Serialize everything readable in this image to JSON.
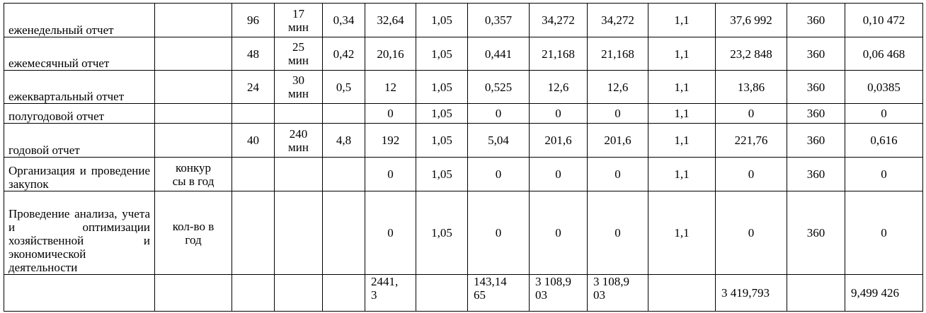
{
  "table": {
    "rows": [
      [
        "еженедельный отчет",
        null,
        "96",
        "17\nмин",
        "0,34",
        "32,64",
        "1,05",
        "0,357",
        "34,272",
        "34,272",
        "1,1",
        "37,6 992",
        "360",
        "0,10 472"
      ],
      [
        "ежемесячный отчет",
        null,
        "48",
        "25\nмин",
        "0,42",
        "20,16",
        "1,05",
        "0,441",
        "21,168",
        "21,168",
        "1,1",
        "23,2 848",
        "360",
        "0,06 468"
      ],
      [
        "ежеквартальный отчет",
        null,
        "24",
        "30\nмин",
        "0,5",
        "12",
        "1,05",
        "0,525",
        "12,6",
        "12,6",
        "1,1",
        "13,86",
        "360",
        "0,0385"
      ],
      [
        "полугодовой отчет",
        null,
        null,
        null,
        null,
        "0",
        "1,05",
        "0",
        "0",
        "0",
        "1,1",
        "0",
        "360",
        "0"
      ],
      [
        "годовой отчет",
        null,
        "40",
        "240\nмин",
        "4,8",
        "192",
        "1,05",
        "5,04",
        "201,6",
        "201,6",
        "1,1",
        "221,76",
        "360",
        "0,616"
      ],
      [
        "Организация и проведение закупок",
        "конкур\nсы в год",
        null,
        null,
        null,
        "0",
        "1,05",
        "0",
        "0",
        "0",
        "1,1",
        "0",
        "360",
        "0"
      ],
      [
        "Проведение анализа, учета и оптимизации хозяйственной и экономической деятельности",
        "кол-во в\nгод",
        null,
        null,
        null,
        "0",
        "1,05",
        "0",
        "0",
        "0",
        "1,1",
        "0",
        "360",
        "0"
      ],
      [
        null,
        null,
        null,
        null,
        null,
        "2441,\n3",
        null,
        "143,14\n65",
        "3 108,9\n03",
        "3 108,9\n03",
        null,
        "3 419,793",
        null,
        "9,499 426"
      ]
    ]
  }
}
